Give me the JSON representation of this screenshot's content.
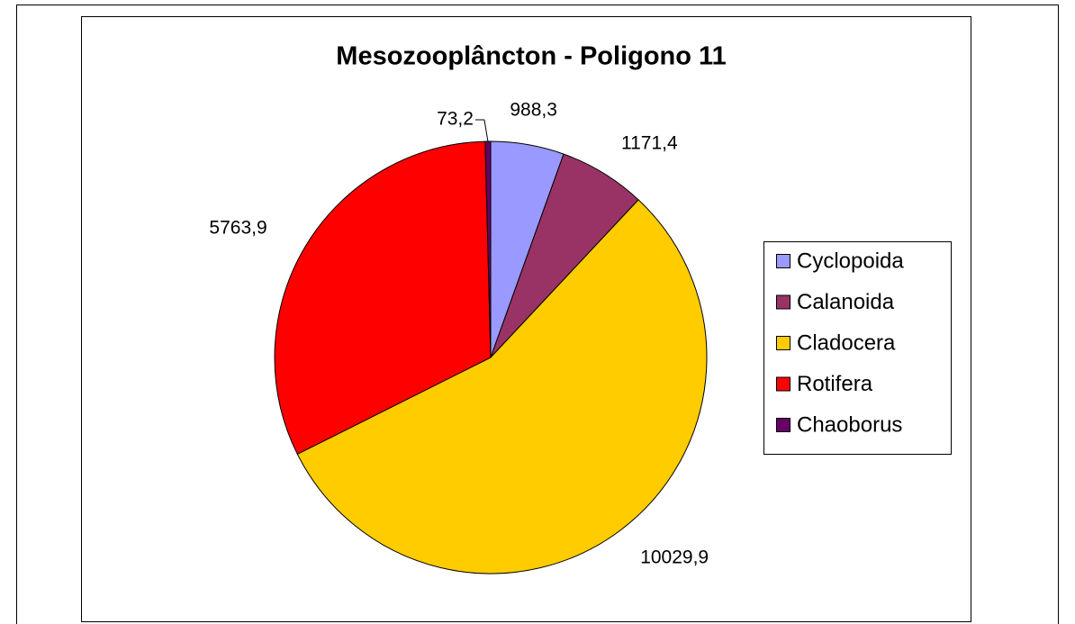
{
  "chart_data": {
    "type": "pie",
    "title": "Mesozooplâncton - Poligono 11",
    "categories": [
      "Cyclopoida",
      "Calanoida",
      "Cladocera",
      "Rotifera",
      "Chaoborus"
    ],
    "values": [
      988.3,
      1171.4,
      10029.9,
      5763.9,
      73.2
    ],
    "value_labels": [
      "988,3",
      "1171,4",
      "10029,9",
      "5763,9",
      "73,2"
    ],
    "colors": [
      "#9999ff",
      "#993366",
      "#ffcc00",
      "#ff0000",
      "#660066"
    ],
    "legend": "right"
  }
}
